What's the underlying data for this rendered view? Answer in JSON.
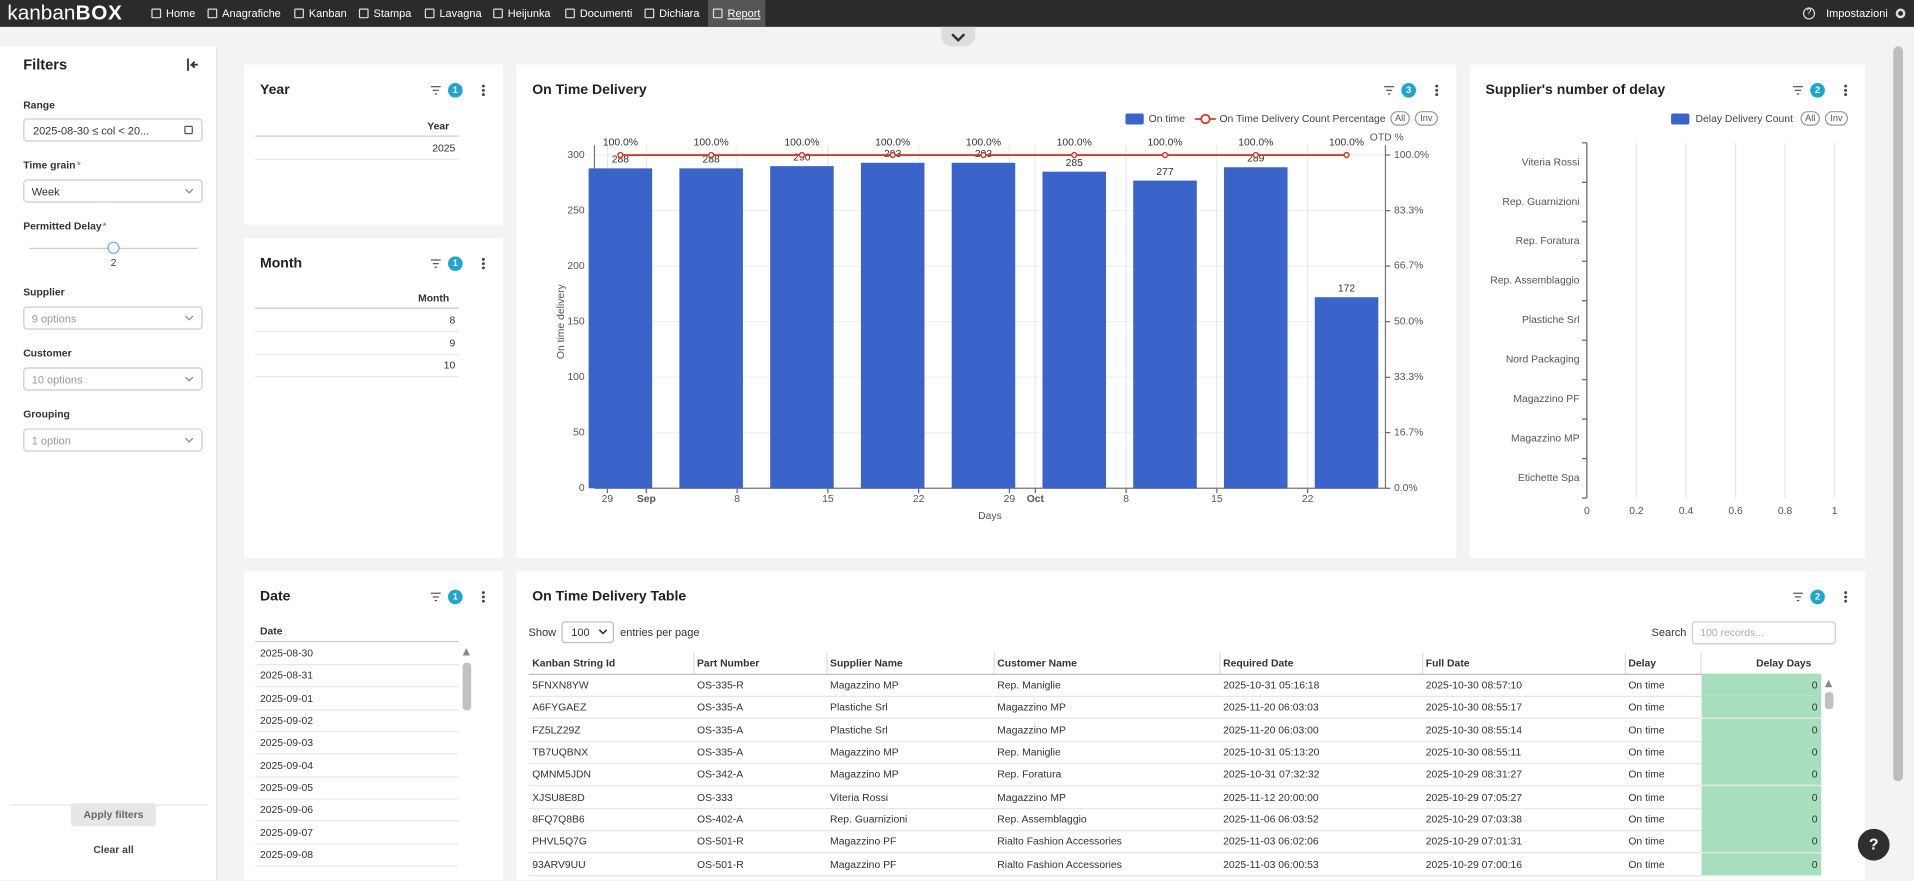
{
  "nav": {
    "logo": "kanban",
    "logo_accent": "BOX",
    "items": [
      "Home",
      "Anagrafiche",
      "Kanban",
      "Stampa",
      "Lavagna",
      "Heijunka",
      "Documenti",
      "Dichiara",
      "Report"
    ],
    "help": "?",
    "settings": "Impostazioni"
  },
  "filters": {
    "title": "Filters",
    "range": {
      "label": "Range",
      "value": "2025-08-30 ≤ col < 20..."
    },
    "time_grain": {
      "label": "Time grain",
      "required": "*",
      "value": "Week"
    },
    "permitted_delay": {
      "label": "Permitted Delay",
      "required": "*",
      "value": 2
    },
    "supplier": {
      "label": "Supplier",
      "value": "9 options"
    },
    "customer": {
      "label": "Customer",
      "value": "10 options"
    },
    "grouping": {
      "label": "Grouping",
      "value": "1 option"
    },
    "apply": "Apply filters",
    "clear": "Clear all"
  },
  "year_panel": {
    "title": "Year",
    "badge": 1,
    "column": "Year",
    "rows": [
      2025
    ]
  },
  "month_panel": {
    "title": "Month",
    "badge": 1,
    "column": "Month",
    "rows": [
      8,
      9,
      10
    ]
  },
  "date_panel": {
    "title": "Date",
    "badge": 1,
    "column": "Date",
    "rows": [
      "2025-08-30",
      "2025-08-31",
      "2025-09-01",
      "2025-09-02",
      "2025-09-03",
      "2025-09-04",
      "2025-09-05",
      "2025-09-06",
      "2025-09-07",
      "2025-09-08"
    ]
  },
  "chart_data": [
    {
      "type": "bar",
      "title": "On Time Delivery",
      "badge": 3,
      "x": [
        "08-30",
        "09-06",
        "09-13",
        "09-20",
        "09-27",
        "10-04",
        "10-11",
        "10-18",
        "10-25"
      ],
      "xlim": [
        "08-28",
        "10-28"
      ],
      "xticks": [
        {
          "value": "08-29",
          "label": "29"
        },
        {
          "value": "09-01",
          "label": "Sep"
        },
        {
          "value": "09-08",
          "label": "8"
        },
        {
          "value": "09-15",
          "label": "15"
        },
        {
          "value": "09-22",
          "label": "22"
        },
        {
          "value": "09-29",
          "label": "29"
        },
        {
          "value": "10-01",
          "label": "Oct"
        },
        {
          "value": "10-08",
          "label": "8"
        },
        {
          "value": "10-15",
          "label": "15"
        },
        {
          "value": "10-22",
          "label": "22"
        }
      ],
      "xlabel": "Days",
      "ylabel": "On time delivery",
      "ylim": [
        0,
        300
      ],
      "yticks": [
        0,
        50,
        100,
        150,
        200,
        250,
        300
      ],
      "y2label": "OTD %",
      "y2lim": [
        0,
        100
      ],
      "y2ticks": [
        {
          "value": 0,
          "label": "0.0%"
        },
        {
          "value": 16.7,
          "label": "16.7%"
        },
        {
          "value": 33.3,
          "label": "33.3%"
        },
        {
          "value": 50,
          "label": "50.0%"
        },
        {
          "value": 66.7,
          "label": "66.7%"
        },
        {
          "value": 83.3,
          "label": "83.3%"
        },
        {
          "value": 100,
          "label": "100.0%"
        }
      ],
      "grid": true,
      "legend_buttons": [
        "All",
        "Inv"
      ],
      "series": [
        {
          "name": "On time",
          "type": "bar",
          "color": "#3a64c9",
          "values": [
            288,
            288,
            290,
            293,
            293,
            285,
            277,
            289,
            172
          ]
        },
        {
          "name": "On Time Delivery Count Percentage",
          "type": "line",
          "axis": "y2",
          "color": "#d33b26",
          "values": [
            100,
            100,
            100,
            100,
            100,
            100,
            100,
            100,
            100
          ],
          "value_labels": [
            "100.0%",
            "100.0%",
            "100.0%",
            "100.0%",
            "100.0%",
            "100.0%",
            "100.0%",
            "100.0%",
            "100.0%"
          ]
        }
      ]
    },
    {
      "type": "bar",
      "orientation": "horizontal",
      "title": "Supplier's number of delay",
      "badge": 2,
      "categories": [
        "Viteria Rossi",
        "Rep. Guarnizioni",
        "Rep. Foratura",
        "Rep. Assemblaggio",
        "Plastiche Srl",
        "Nord Packaging",
        "Magazzino PF",
        "Magazzino MP",
        "Etichette Spa"
      ],
      "xlim": [
        0,
        1
      ],
      "xticks": [
        0,
        0.2,
        0.4,
        0.6,
        0.8,
        1
      ],
      "grid": true,
      "legend_buttons": [
        "All",
        "Inv"
      ],
      "series": [
        {
          "name": "Delay Delivery Count",
          "color": "#3a64c9",
          "values": [
            0,
            0,
            0,
            0,
            0,
            0,
            0,
            0,
            0
          ]
        }
      ]
    }
  ],
  "table": {
    "title": "On Time Delivery Table",
    "badge": 2,
    "show": "Show",
    "page_size": 100,
    "entries": "entries per page",
    "search": "Search",
    "search_placeholder": "100 records...",
    "columns": [
      "Kanban String Id",
      "Part Number",
      "Supplier Name",
      "Customer Name",
      "Required Date",
      "Full Date",
      "Delay",
      "Delay Days"
    ],
    "rows": [
      [
        "5FNXN8YW",
        "OS-335-R",
        "Magazzino MP",
        "Rep. Maniglie",
        "2025-10-31 05:16:18",
        "2025-10-30 08:57:10",
        "On time",
        0
      ],
      [
        "A6FYGAEZ",
        "OS-335-A",
        "Plastiche Srl",
        "Magazzino MP",
        "2025-11-20 06:03:03",
        "2025-10-30 08:55:17",
        "On time",
        0
      ],
      [
        "FZ5LZ29Z",
        "OS-335-A",
        "Plastiche Srl",
        "Magazzino MP",
        "2025-11-20 06:03:00",
        "2025-10-30 08:55:14",
        "On time",
        0
      ],
      [
        "TB7UQBNX",
        "OS-335-A",
        "Magazzino MP",
        "Rep. Maniglie",
        "2025-10-31 05:13:20",
        "2025-10-30 08:55:11",
        "On time",
        0
      ],
      [
        "QMNM5JDN",
        "OS-342-A",
        "Magazzino MP",
        "Rep. Foratura",
        "2025-10-31 07:32:32",
        "2025-10-29 08:31:27",
        "On time",
        0
      ],
      [
        "XJSU8E8D",
        "OS-333",
        "Viteria Rossi",
        "Magazzino MP",
        "2025-11-12 20:00:00",
        "2025-10-29 07:05:27",
        "On time",
        0
      ],
      [
        "8FQ7Q8B6",
        "OS-402-A",
        "Rep. Guarnizioni",
        "Rep. Assemblaggio",
        "2025-11-06 06:03:52",
        "2025-10-29 07:03:38",
        "On time",
        0
      ],
      [
        "PHVL5Q7G",
        "OS-501-R",
        "Magazzino PF",
        "Rialto Fashion Accessories",
        "2025-11-03 06:02:06",
        "2025-10-29 07:01:31",
        "On time",
        0
      ],
      [
        "93ARV9UU",
        "OS-501-R",
        "Magazzino PF",
        "Rialto Fashion Accessories",
        "2025-11-03 06:00:53",
        "2025-10-29 07:00:16",
        "On time",
        0
      ]
    ]
  },
  "help_button": "?"
}
